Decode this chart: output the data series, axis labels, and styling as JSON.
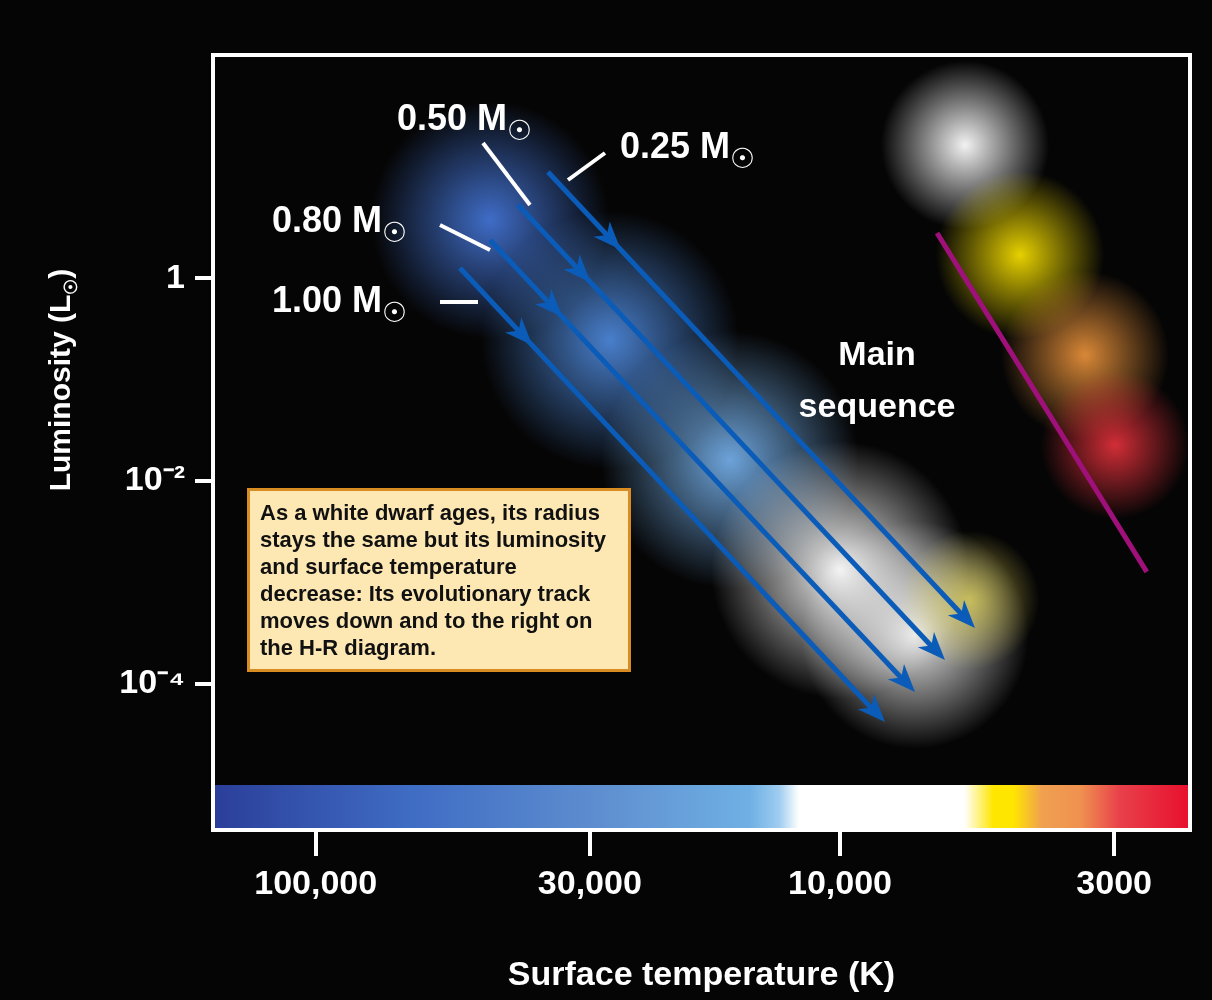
{
  "chart_data": {
    "type": "line",
    "xlabel": "Surface temperature (K)",
    "ylabel": "Luminosity (L$_{☉}$)",
    "log": "xy",
    "xlim": [
      157000,
      2150
    ],
    "ylim": [
      3.6e-06,
      160
    ],
    "xticks": [
      {
        "value": 100000,
        "label": "100,000"
      },
      {
        "value": 30000,
        "label": "30,000"
      },
      {
        "value": 10000,
        "label": "10,000"
      },
      3000
    ],
    "yticks": [
      1,
      {
        "value": 0.01,
        "label": "10⁻²"
      },
      {
        "value": 0.0001,
        "label": "10⁻⁴"
      }
    ],
    "marker": "none",
    "line_style": "solid",
    "legend": false,
    "series": [
      {
        "name": "Main sequence",
        "color": "#a0107a",
        "x": [
          6530,
          2600
        ],
        "values": [
          2.8,
          0.00127
        ]
      }
    ],
    "annotations": [
      "As a white dwarf ages, its radius stays the same but its luminosity and surface temperature decrease: Its evolutionary track moves down and to the right on the H-R diagram.",
      "1.00 M$_{☉}$",
      "0.80 M$_{☉}$",
      "0.50 M$_{☉}$",
      "0.25 M$_{☉}$"
    ]
  }
}
